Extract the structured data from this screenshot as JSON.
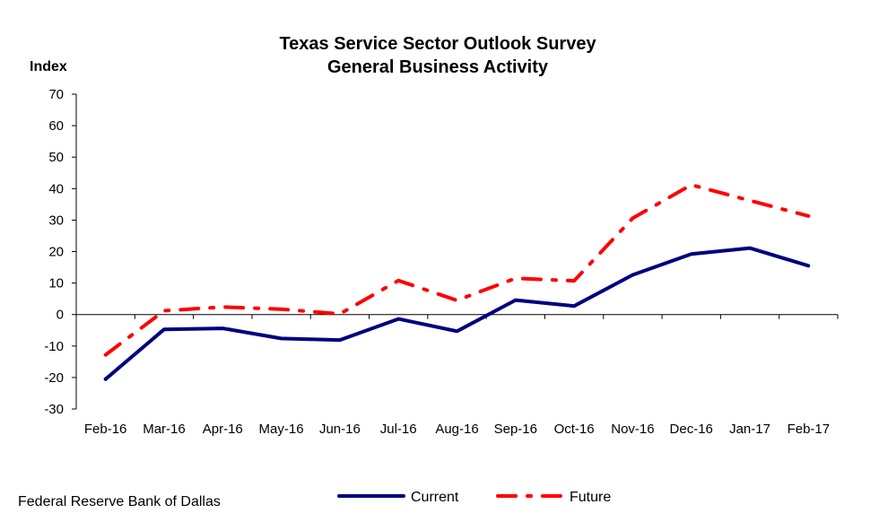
{
  "chart_data": {
    "type": "line",
    "title": "Texas Service Sector Outlook Survey",
    "subtitle": "General Business Activity",
    "ylabel": "Index",
    "xlabel": "",
    "ylim": [
      -30,
      70
    ],
    "yticks": [
      -30,
      -20,
      -10,
      0,
      10,
      20,
      30,
      40,
      50,
      60,
      70
    ],
    "categories": [
      "Feb-16",
      "Mar-16",
      "Apr-16",
      "May-16",
      "Jun-16",
      "Jul-16",
      "Aug-16",
      "Sep-16",
      "Oct-16",
      "Nov-16",
      "Dec-16",
      "Jan-17",
      "Feb-17"
    ],
    "grid": false,
    "legend_position": "bottom",
    "series": [
      {
        "name": "Current",
        "color": "#000080",
        "style": "solid",
        "values": [
          -20.5,
          -4.7,
          -4.4,
          -7.6,
          -8.1,
          -1.4,
          -5.3,
          4.6,
          2.7,
          12.6,
          19.2,
          21.1,
          15.5
        ]
      },
      {
        "name": "Future",
        "color": "#ff0000",
        "style": "dashdot",
        "values": [
          -12.8,
          1.2,
          2.4,
          1.7,
          0.2,
          10.8,
          4.5,
          11.5,
          10.7,
          30.6,
          41.2,
          36.2,
          31.3
        ]
      }
    ]
  },
  "source": "Federal Reserve Bank of Dallas"
}
